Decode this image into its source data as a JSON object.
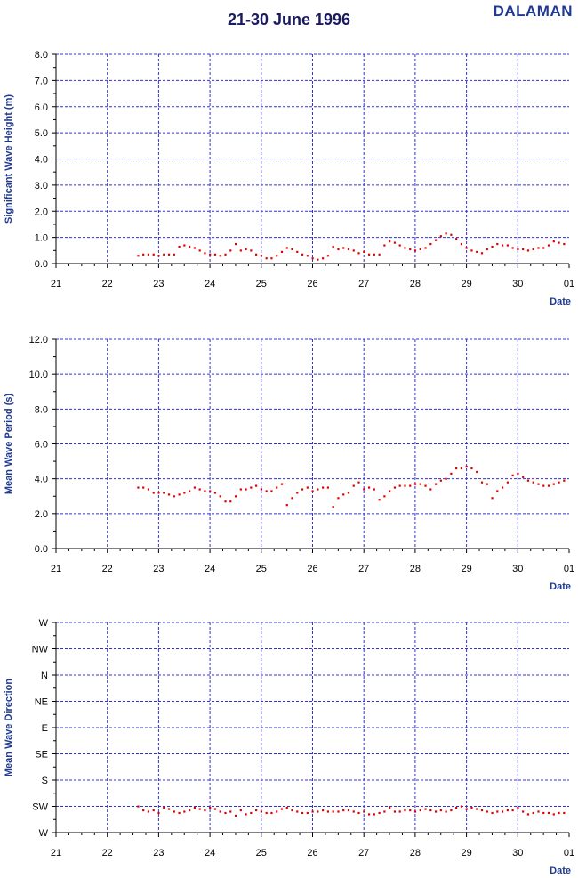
{
  "header": {
    "title": "21-30 June 1996",
    "station": "DALAMAN"
  },
  "colors": {
    "grid": "#3333cc",
    "points": "#e00000",
    "axis": "#000000",
    "label": "#1f3a93"
  },
  "chart_data": [
    {
      "type": "scatter",
      "ylabel": "Significant Wave Height (m)",
      "xlabel": "Date",
      "x_tick_labels": [
        "21",
        "22",
        "23",
        "24",
        "25",
        "26",
        "27",
        "28",
        "29",
        "30",
        "01"
      ],
      "xlim": [
        21,
        31
      ],
      "ylim": [
        0,
        8
      ],
      "y_tick_labels": [
        "0.0",
        "1.0",
        "2.0",
        "3.0",
        "4.0",
        "5.0",
        "6.0",
        "7.0",
        "8.0"
      ],
      "grid": true,
      "x": [
        22.6,
        22.7,
        22.8,
        22.9,
        23.0,
        23.1,
        23.2,
        23.3,
        23.4,
        23.5,
        23.6,
        23.7,
        23.8,
        23.9,
        24.0,
        24.1,
        24.2,
        24.3,
        24.4,
        24.5,
        24.6,
        24.7,
        24.8,
        24.9,
        25.0,
        25.1,
        25.2,
        25.3,
        25.4,
        25.5,
        25.6,
        25.7,
        25.8,
        25.9,
        26.0,
        26.1,
        26.2,
        26.3,
        26.4,
        26.5,
        26.6,
        26.7,
        26.8,
        26.9,
        27.0,
        27.1,
        27.2,
        27.3,
        27.4,
        27.5,
        27.6,
        27.7,
        27.8,
        27.9,
        28.0,
        28.1,
        28.2,
        28.3,
        28.4,
        28.5,
        28.6,
        28.7,
        28.8,
        28.9,
        29.0,
        29.1,
        29.2,
        29.3,
        29.4,
        29.5,
        29.6,
        29.7,
        29.8,
        29.9,
        30.0,
        30.1,
        30.2,
        30.3,
        30.4,
        30.5,
        30.6,
        30.7,
        30.8,
        30.9
      ],
      "y": [
        0.3,
        0.35,
        0.35,
        0.35,
        0.3,
        0.35,
        0.35,
        0.35,
        0.65,
        0.7,
        0.65,
        0.6,
        0.5,
        0.4,
        0.35,
        0.35,
        0.3,
        0.35,
        0.5,
        0.75,
        0.5,
        0.55,
        0.5,
        0.35,
        0.3,
        0.2,
        0.2,
        0.3,
        0.45,
        0.6,
        0.55,
        0.45,
        0.35,
        0.3,
        0.2,
        0.15,
        0.2,
        0.3,
        0.65,
        0.55,
        0.6,
        0.55,
        0.5,
        0.4,
        0.45,
        0.35,
        0.35,
        0.35,
        0.7,
        0.85,
        0.8,
        0.7,
        0.6,
        0.55,
        0.5,
        0.55,
        0.6,
        0.75,
        0.9,
        1.05,
        1.15,
        1.1,
        0.95,
        0.75,
        0.6,
        0.5,
        0.45,
        0.4,
        0.55,
        0.65,
        0.75,
        0.7,
        0.7,
        0.6,
        0.55,
        0.55,
        0.5,
        0.55,
        0.6,
        0.6,
        0.7,
        0.85,
        0.8,
        0.75
      ]
    },
    {
      "type": "scatter",
      "ylabel": "Mean Wave Period (s)",
      "xlabel": "Date",
      "x_tick_labels": [
        "21",
        "22",
        "23",
        "24",
        "25",
        "26",
        "27",
        "28",
        "29",
        "30",
        "01"
      ],
      "xlim": [
        21,
        31
      ],
      "ylim": [
        0,
        12
      ],
      "y_tick_labels": [
        "0.0",
        "2.0",
        "4.0",
        "6.0",
        "8.0",
        "10.0",
        "12.0"
      ],
      "grid": true,
      "x": [
        22.6,
        22.7,
        22.8,
        22.9,
        23.0,
        23.1,
        23.2,
        23.3,
        23.4,
        23.5,
        23.6,
        23.7,
        23.8,
        23.9,
        24.0,
        24.1,
        24.2,
        24.3,
        24.4,
        24.5,
        24.6,
        24.7,
        24.8,
        24.9,
        25.0,
        25.1,
        25.2,
        25.3,
        25.4,
        25.5,
        25.6,
        25.7,
        25.8,
        25.9,
        26.0,
        26.1,
        26.2,
        26.3,
        26.4,
        26.5,
        26.6,
        26.7,
        26.8,
        26.9,
        27.0,
        27.1,
        27.2,
        27.3,
        27.4,
        27.5,
        27.6,
        27.7,
        27.8,
        27.9,
        28.0,
        28.1,
        28.2,
        28.3,
        28.4,
        28.5,
        28.6,
        28.7,
        28.8,
        28.9,
        29.0,
        29.1,
        29.2,
        29.3,
        29.4,
        29.5,
        29.6,
        29.7,
        29.8,
        29.9,
        30.0,
        30.1,
        30.2,
        30.3,
        30.4,
        30.5,
        30.6,
        30.7,
        30.8,
        30.9
      ],
      "y": [
        3.5,
        3.5,
        3.4,
        3.2,
        3.2,
        3.2,
        3.1,
        3.0,
        3.1,
        3.2,
        3.3,
        3.5,
        3.4,
        3.3,
        3.3,
        3.2,
        3.0,
        2.7,
        2.7,
        3.0,
        3.4,
        3.4,
        3.5,
        3.6,
        3.4,
        3.3,
        3.3,
        3.5,
        3.7,
        2.5,
        2.9,
        3.2,
        3.4,
        3.5,
        3.3,
        3.4,
        3.5,
        3.5,
        2.4,
        2.9,
        3.1,
        3.2,
        3.6,
        3.8,
        3.4,
        3.5,
        3.4,
        2.8,
        3.0,
        3.3,
        3.5,
        3.6,
        3.6,
        3.6,
        3.7,
        3.7,
        3.6,
        3.4,
        3.7,
        3.9,
        4.0,
        4.3,
        4.6,
        4.6,
        4.7,
        4.6,
        4.4,
        3.8,
        3.7,
        2.9,
        3.3,
        3.5,
        3.8,
        4.2,
        4.3,
        4.1,
        3.9,
        3.8,
        3.7,
        3.6,
        3.6,
        3.7,
        3.8,
        3.9
      ]
    },
    {
      "type": "scatter",
      "ylabel": "Mean Wave Direction",
      "xlabel": "Date",
      "x_tick_labels": [
        "21",
        "22",
        "23",
        "24",
        "25",
        "26",
        "27",
        "28",
        "29",
        "30",
        "01"
      ],
      "xlim": [
        21,
        31
      ],
      "ylim": [
        0,
        8
      ],
      "y_tick_labels": [
        "W",
        "SW",
        "S",
        "SE",
        "E",
        "NE",
        "N",
        "NW",
        "W"
      ],
      "y_units": "compass sectors (0 = W, 1 = SW, ... 8 = W)",
      "grid": true,
      "x": [
        22.6,
        22.7,
        22.8,
        22.9,
        23.0,
        23.1,
        23.2,
        23.3,
        23.4,
        23.5,
        23.6,
        23.7,
        23.8,
        23.9,
        24.0,
        24.1,
        24.2,
        24.3,
        24.4,
        24.5,
        24.6,
        24.7,
        24.8,
        24.9,
        25.0,
        25.1,
        25.2,
        25.3,
        25.4,
        25.5,
        25.6,
        25.7,
        25.8,
        25.9,
        26.0,
        26.1,
        26.2,
        26.3,
        26.4,
        26.5,
        26.6,
        26.7,
        26.8,
        26.9,
        27.0,
        27.1,
        27.2,
        27.3,
        27.4,
        27.5,
        27.6,
        27.7,
        27.8,
        27.9,
        28.0,
        28.1,
        28.2,
        28.3,
        28.4,
        28.5,
        28.6,
        28.7,
        28.8,
        28.9,
        29.0,
        29.1,
        29.2,
        29.3,
        29.4,
        29.5,
        29.6,
        29.7,
        29.8,
        29.9,
        30.0,
        30.1,
        30.2,
        30.3,
        30.4,
        30.5,
        30.6,
        30.7,
        30.8,
        30.9
      ],
      "y": [
        1.0,
        0.85,
        0.8,
        0.85,
        0.75,
        0.95,
        0.9,
        0.8,
        0.75,
        0.8,
        0.85,
        0.95,
        0.9,
        0.85,
        0.95,
        0.9,
        0.8,
        0.75,
        0.8,
        0.65,
        0.85,
        0.7,
        0.75,
        0.85,
        0.8,
        0.75,
        0.75,
        0.8,
        0.9,
        0.95,
        0.85,
        0.8,
        0.75,
        0.75,
        0.8,
        0.8,
        0.85,
        0.8,
        0.8,
        0.8,
        0.85,
        0.85,
        0.8,
        0.75,
        0.8,
        0.7,
        0.7,
        0.75,
        0.8,
        0.95,
        0.8,
        0.8,
        0.85,
        0.85,
        0.8,
        0.85,
        0.9,
        0.85,
        0.8,
        0.85,
        0.8,
        0.85,
        0.95,
        1.0,
        0.9,
        0.95,
        0.9,
        0.85,
        0.8,
        0.75,
        0.8,
        0.8,
        0.85,
        0.85,
        0.95,
        0.8,
        0.7,
        0.75,
        0.8,
        0.75,
        0.75,
        0.7,
        0.75,
        0.75
      ]
    }
  ]
}
